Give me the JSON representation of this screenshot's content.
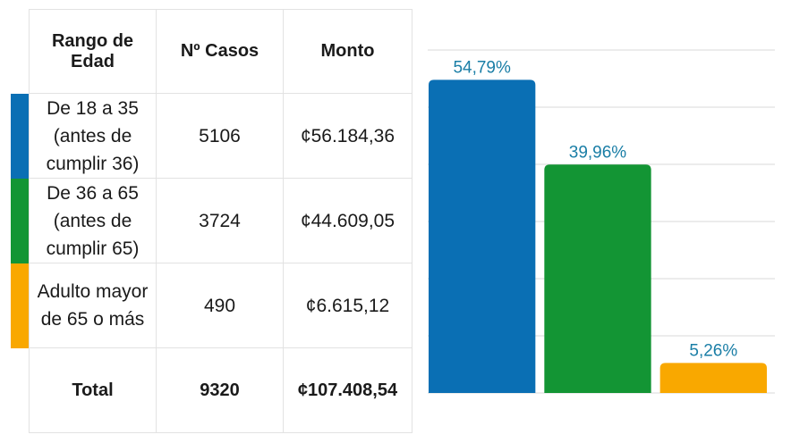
{
  "table": {
    "headers": {
      "range": "Rango de Edad",
      "cases": "Nº Casos",
      "amount": "Monto"
    },
    "rows": [
      {
        "range_lines": [
          "De 18 a 35",
          "(antes de",
          "cumplir 36)"
        ],
        "cases": "5106",
        "amount": "¢56.184,36",
        "color": "#0a6fb4"
      },
      {
        "range_lines": [
          "De 36 a 65",
          "(antes de",
          "cumplir 65)"
        ],
        "cases": "3724",
        "amount": "¢44.609,05",
        "color": "#139534"
      },
      {
        "range_lines": [
          "Adulto mayor",
          "de 65 o más"
        ],
        "cases": "490",
        "amount": "¢6.615,12",
        "color": "#f9a800"
      }
    ],
    "total": {
      "label": "Total",
      "cases": "9320",
      "amount": "¢107.408,54"
    }
  },
  "chart_data": {
    "type": "bar",
    "categories": [
      "De 18 a 35",
      "De 36 a 65",
      "Adulto mayor de 65 o más"
    ],
    "values": [
      54.79,
      39.96,
      5.26
    ],
    "data_labels": [
      "54,79%",
      "39,96%",
      "5,26%"
    ],
    "colors": [
      "#0a6fb4",
      "#139534",
      "#f9a800"
    ],
    "label_color": "#1a7ea6",
    "ylim": [
      0,
      60
    ],
    "grid": true,
    "title": "",
    "xlabel": "",
    "ylabel": ""
  }
}
